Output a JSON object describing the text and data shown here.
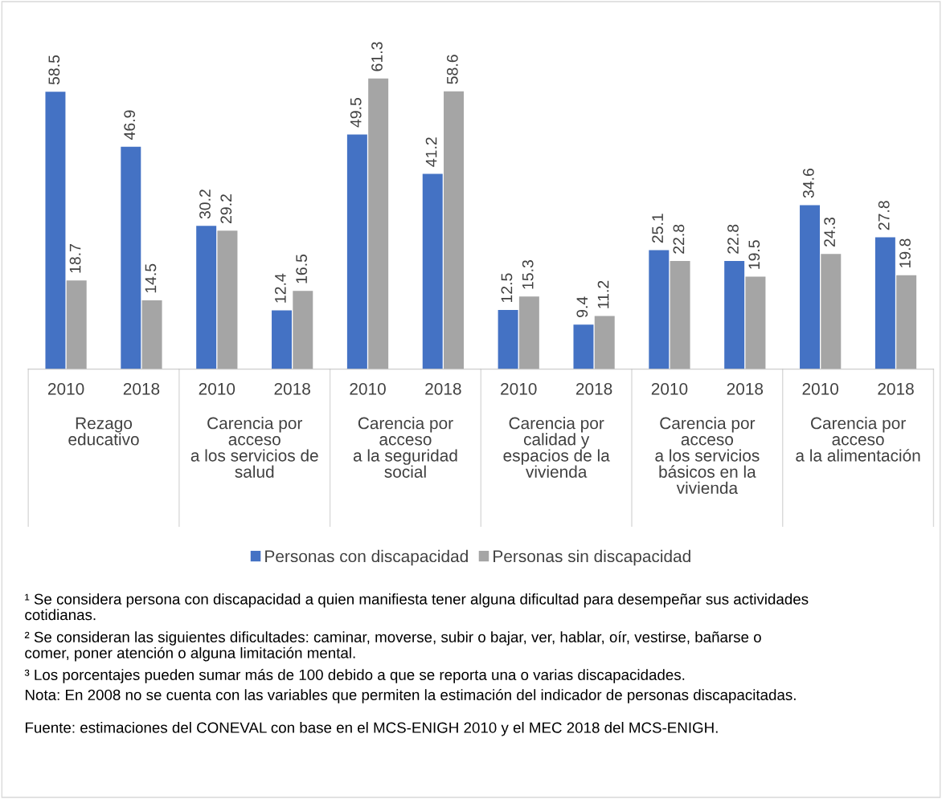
{
  "chart_data": {
    "type": "bar",
    "categories": [
      "2010",
      "2018",
      "2010",
      "2018",
      "2010",
      "2018",
      "2010",
      "2018",
      "2010",
      "2018",
      "2010",
      "2018"
    ],
    "series": [
      {
        "name": "Personas con discapacidad",
        "color": "#4472c4",
        "values": [
          58.5,
          46.9,
          30.2,
          12.4,
          49.5,
          41.2,
          12.5,
          9.4,
          25.1,
          22.8,
          34.6,
          27.8
        ]
      },
      {
        "name": "Personas sin discapacidad",
        "color": "#a5a5a5",
        "values": [
          18.7,
          14.5,
          29.2,
          16.5,
          61.3,
          58.6,
          15.3,
          11.2,
          22.8,
          19.5,
          24.3,
          19.8
        ]
      }
    ],
    "data_labels": true,
    "grid": false,
    "legend": "bottom",
    "annotations": [
      "Rezago\neducativo",
      "Carencia por\nacceso\na los servicios de\nsalud",
      "Carencia por\nacceso\na la seguridad\nsocial",
      "Carencia por\ncalidad y\nespacios de la\nvivienda",
      "Carencia por\nacceso\na los servicios\nbásicos en la\nvivienda",
      "Carencia por\nacceso\na la alimentación",
      "¹ Se considera persona con discapacidad a quien manifiesta tener alguna dificultad para desempeñar sus actividades\ncotidianas.",
      "² Se consideran las siguientes dificultades: caminar, moverse, subir o bajar, ver, hablar, oír, vestirse, bañarse o\ncomer, poner atención o alguna limitación mental.",
      "³ Los porcentajes pueden sumar más de 100 debido a que se reporta una o varias discapacidades.",
      "Nota: En 2008 no se cuenta con las variables que permiten la estimación del indicador de personas discapacitadas.",
      "Fuente: estimaciones del CONEVAL con base en el MCS-ENIGH 2010 y el MEC 2018 del MCS-ENIGH."
    ]
  }
}
